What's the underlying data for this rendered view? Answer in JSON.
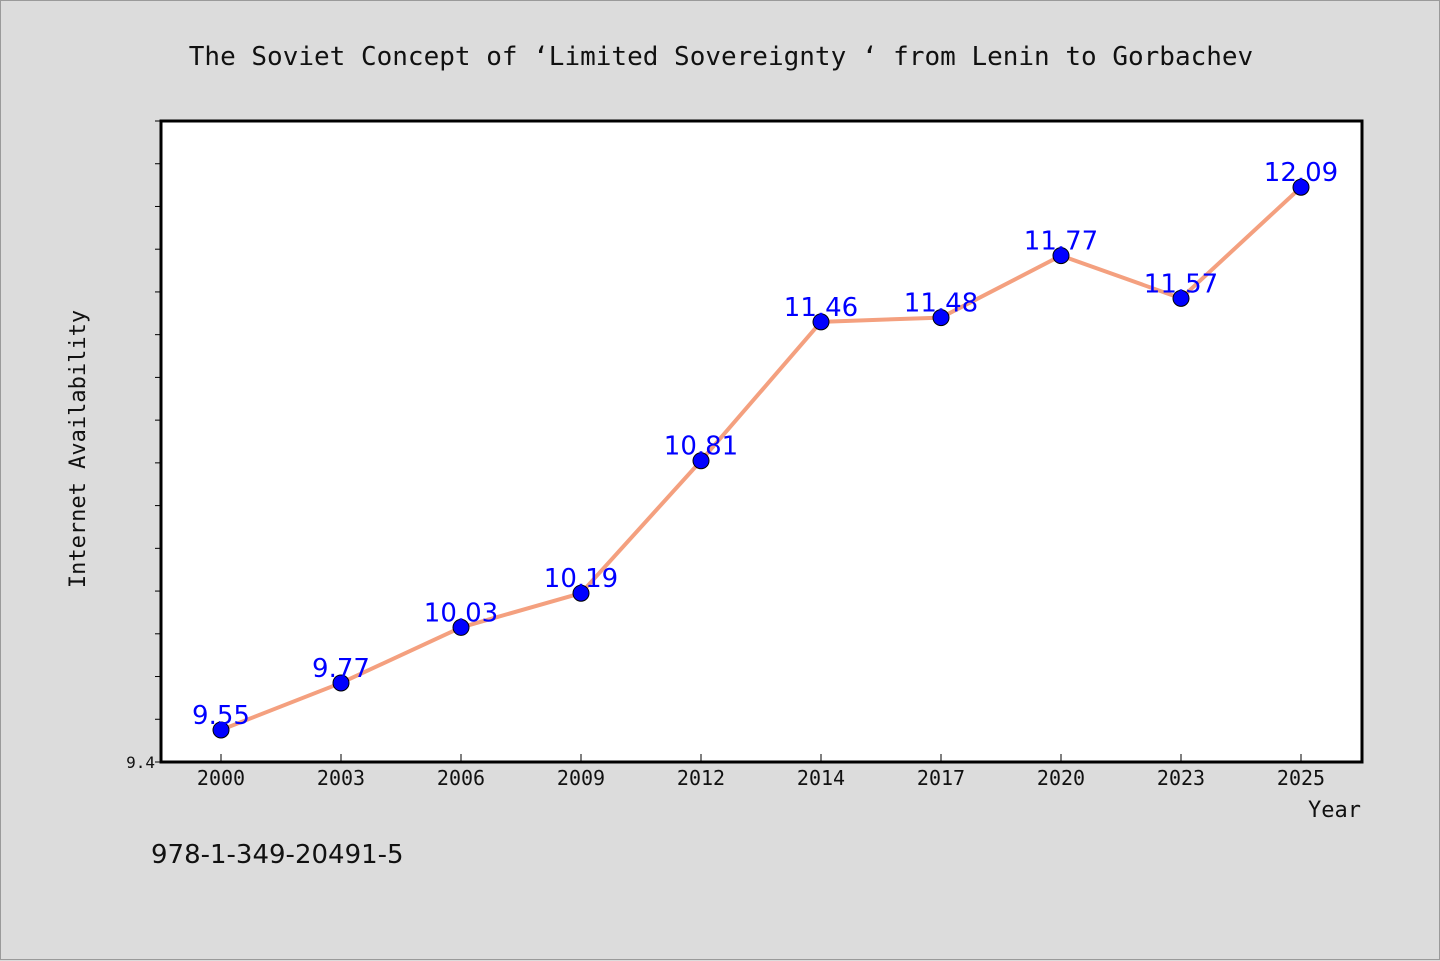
{
  "chart_data": {
    "type": "line",
    "title": "The Soviet Concept of  ‘Limited Sovereignty ‘ from Lenin to Gorbachev",
    "xlabel": "Year",
    "ylabel": "Internet Availability",
    "categories": [
      "2000",
      "2003",
      "2006",
      "2009",
      "2012",
      "2014",
      "2017",
      "2020",
      "2023",
      "2025"
    ],
    "series": [
      {
        "values": [
          9.55,
          9.77,
          10.03,
          10.19,
          10.81,
          11.46,
          11.48,
          11.77,
          11.57,
          12.09
        ],
        "labels": [
          "9.55",
          "9.77",
          "10.03",
          "10.19",
          "10.81",
          "11.46",
          "11.48",
          "11.77",
          "11.57",
          "12.09"
        ]
      }
    ],
    "ylim": [
      9.4,
      12.4
    ],
    "yticks_labeled": [
      "9.4"
    ],
    "grid": false,
    "line_color": "#f4a07f",
    "marker_color": "#0000ff"
  },
  "footer": {
    "isbn": "978-1-349-20491-5"
  }
}
